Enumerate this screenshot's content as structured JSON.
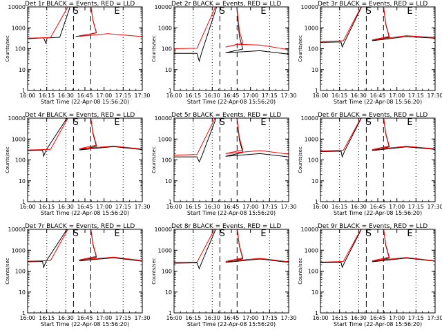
{
  "ylabel": "Counts/sec",
  "xlabel": "Start Time (22-Apr-08 15:56:20)",
  "title_suffix": " BLACK = Events, RED = LLD",
  "x_ticks": [
    "16:00",
    "16:15",
    "16:30",
    "16:45",
    "17:00",
    "17:15",
    "17:30"
  ],
  "y_ticks": [
    "1",
    "10",
    "100",
    "1000",
    "10000"
  ],
  "markers": {
    "start": "S",
    "end": "E"
  },
  "colors": {
    "events": "#000000",
    "lld": "#ff0000"
  },
  "chart_data": [
    {
      "type": "line",
      "title": "Det 1r",
      "xlim": [
        0,
        1
      ],
      "ylim": [
        1,
        10000
      ],
      "yscale": "log",
      "series": [
        {
          "name": "Events",
          "x": [
            0,
            0.09,
            0.14,
            0.16,
            0.17,
            0.28,
            0.42
          ],
          "y": [
            300,
            320,
            330,
            180,
            330,
            350,
            380
          ]
        },
        {
          "name": "LLD",
          "x": [
            0,
            0.2,
            0.45,
            0.7,
            1.0
          ],
          "y": [
            320,
            340,
            390,
            520,
            380
          ]
        }
      ]
    },
    {
      "type": "line",
      "title": "Det 2r",
      "xlim": [
        0,
        1
      ],
      "ylim": [
        1,
        10000
      ],
      "yscale": "log",
      "series": [
        {
          "name": "Events",
          "x": [
            0,
            0.2,
            0.22,
            0.24,
            0.45,
            0.75,
            1.0
          ],
          "y": [
            60,
            60,
            25,
            62,
            64,
            80,
            55
          ]
        },
        {
          "name": "LLD",
          "x": [
            0,
            0.2,
            0.45,
            0.55,
            0.75,
            1.0
          ],
          "y": [
            100,
            105,
            120,
            160,
            150,
            90
          ]
        }
      ]
    },
    {
      "type": "line",
      "title": "Det 3r",
      "xlim": [
        0,
        1
      ],
      "ylim": [
        1,
        10000
      ],
      "yscale": "log",
      "series": [
        {
          "name": "Events",
          "x": [
            0,
            0.18,
            0.19,
            0.21,
            0.45,
            0.75,
            1.0
          ],
          "y": [
            200,
            210,
            120,
            210,
            240,
            380,
            320
          ]
        },
        {
          "name": "LLD",
          "x": [
            0,
            0.2,
            0.45,
            0.75,
            1.0
          ],
          "y": [
            220,
            240,
            260,
            420,
            340
          ]
        }
      ]
    },
    {
      "type": "line",
      "title": "Det 4r",
      "xlim": [
        0,
        1
      ],
      "ylim": [
        1,
        10000
      ],
      "yscale": "log",
      "series": [
        {
          "name": "Events",
          "x": [
            0,
            0.13,
            0.14,
            0.16,
            0.45,
            0.75,
            1.0
          ],
          "y": [
            280,
            290,
            150,
            290,
            300,
            430,
            310
          ]
        },
        {
          "name": "LLD",
          "x": [
            0,
            0.2,
            0.45,
            0.75,
            1.0
          ],
          "y": [
            300,
            320,
            340,
            460,
            330
          ]
        }
      ]
    },
    {
      "type": "line",
      "title": "Det 5r",
      "xlim": [
        0,
        1
      ],
      "ylim": [
        1,
        10000
      ],
      "yscale": "log",
      "series": [
        {
          "name": "Events",
          "x": [
            0,
            0.2,
            0.22,
            0.24,
            0.45,
            0.75,
            1.0
          ],
          "y": [
            140,
            140,
            80,
            140,
            150,
            200,
            140
          ]
        },
        {
          "name": "LLD",
          "x": [
            0,
            0.2,
            0.45,
            0.75,
            1.0
          ],
          "y": [
            170,
            180,
            200,
            280,
            190
          ]
        }
      ]
    },
    {
      "type": "line",
      "title": "Det 6r",
      "xlim": [
        0,
        1
      ],
      "ylim": [
        1,
        10000
      ],
      "yscale": "log",
      "series": [
        {
          "name": "Events",
          "x": [
            0,
            0.18,
            0.19,
            0.21,
            0.45,
            0.75,
            1.0
          ],
          "y": [
            250,
            260,
            140,
            260,
            280,
            420,
            320
          ]
        },
        {
          "name": "LLD",
          "x": [
            0,
            0.2,
            0.45,
            0.75,
            1.0
          ],
          "y": [
            270,
            290,
            310,
            450,
            340
          ]
        }
      ]
    },
    {
      "type": "line",
      "title": "Det 7r",
      "xlim": [
        0,
        1
      ],
      "ylim": [
        1,
        10000
      ],
      "yscale": "log",
      "series": [
        {
          "name": "Events",
          "x": [
            0,
            0.13,
            0.14,
            0.16,
            0.45,
            0.75,
            1.0
          ],
          "y": [
            280,
            290,
            150,
            290,
            310,
            430,
            300
          ]
        },
        {
          "name": "LLD",
          "x": [
            0,
            0.2,
            0.45,
            0.75,
            1.0
          ],
          "y": [
            300,
            320,
            340,
            470,
            320
          ]
        }
      ]
    },
    {
      "type": "line",
      "title": "Det 8r",
      "xlim": [
        0,
        1
      ],
      "ylim": [
        1,
        10000
      ],
      "yscale": "log",
      "series": [
        {
          "name": "Events",
          "x": [
            0,
            0.2,
            0.22,
            0.24,
            0.45,
            0.75,
            1.0
          ],
          "y": [
            240,
            250,
            130,
            250,
            260,
            380,
            260
          ]
        },
        {
          "name": "LLD",
          "x": [
            0,
            0.2,
            0.45,
            0.75,
            1.0
          ],
          "y": [
            260,
            270,
            290,
            410,
            280
          ]
        }
      ]
    },
    {
      "type": "line",
      "title": "Det 9r",
      "xlim": [
        0,
        1
      ],
      "ylim": [
        1,
        10000
      ],
      "yscale": "log",
      "series": [
        {
          "name": "Events",
          "x": [
            0,
            0.18,
            0.19,
            0.21,
            0.45,
            0.75,
            1.0
          ],
          "y": [
            250,
            260,
            150,
            260,
            280,
            420,
            300
          ]
        },
        {
          "name": "LLD",
          "x": [
            0,
            0.2,
            0.45,
            0.75,
            1.0
          ],
          "y": [
            270,
            290,
            310,
            450,
            310
          ]
        }
      ]
    }
  ]
}
